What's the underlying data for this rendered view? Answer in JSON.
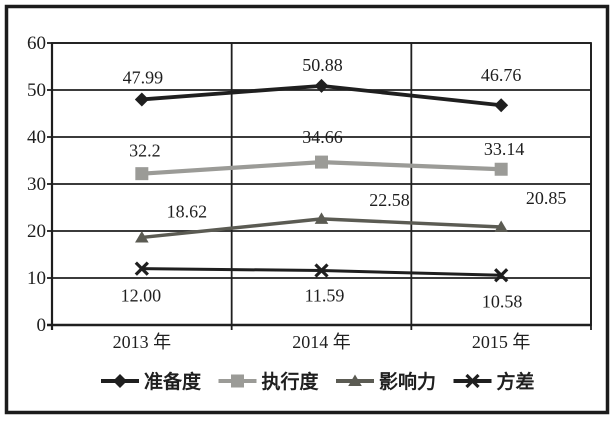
{
  "figure": {
    "background": "#ffffff",
    "frame_color": "#1c1c1c",
    "grid_color": "#1f1f1f",
    "text_color": "#1f1f1f"
  },
  "chart_data": {
    "type": "line",
    "title": "",
    "xlabel": "",
    "ylabel": "",
    "categories": [
      "2013 年",
      "2014 年",
      "2015 年"
    ],
    "ylim": [
      0,
      60
    ],
    "ytick_step": 10,
    "yticks": [
      "0",
      "10",
      "20",
      "30",
      "40",
      "50",
      "60"
    ],
    "grid": true,
    "legend_position": "bottom",
    "series": [
      {
        "name": "准备度",
        "marker": "diamond",
        "color": "#1f1f1f",
        "line_width": 3.8,
        "values": [
          47.99,
          50.88,
          46.76
        ],
        "labels": [
          "47.99",
          "50.88",
          "46.76"
        ],
        "label_offsets": [
          [
            1,
            -16
          ],
          [
            1,
            -15
          ],
          [
            0,
            -24
          ]
        ]
      },
      {
        "name": "执行度",
        "marker": "square",
        "color": "#9b9b97",
        "line_width": 4.2,
        "values": [
          32.2,
          34.66,
          33.14
        ],
        "labels": [
          "32.2",
          "34.66",
          "33.14"
        ],
        "label_offsets": [
          [
            3,
            -17
          ],
          [
            1,
            -19
          ],
          [
            3,
            -14
          ]
        ]
      },
      {
        "name": "影响力",
        "marker": "triangle",
        "color": "#5b5b53",
        "line_width": 3.4,
        "values": [
          18.62,
          22.58,
          20.85
        ],
        "labels": [
          "18.62",
          "22.58",
          "20.85"
        ],
        "label_offsets": [
          [
            45,
            -20
          ],
          [
            68,
            -13
          ],
          [
            45,
            -23
          ]
        ]
      },
      {
        "name": "方差",
        "marker": "x",
        "color": "#1f1f1f",
        "line_width": 3.0,
        "values": [
          12.0,
          11.59,
          10.58
        ],
        "labels": [
          "12.00",
          "11.59",
          "10.58"
        ],
        "label_offsets": [
          [
            -1,
            33
          ],
          [
            3,
            31
          ],
          [
            1,
            32
          ]
        ]
      }
    ]
  }
}
